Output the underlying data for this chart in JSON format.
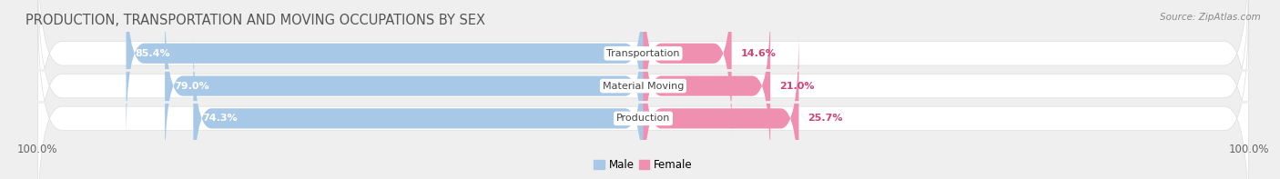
{
  "title": "PRODUCTION, TRANSPORTATION AND MOVING OCCUPATIONS BY SEX",
  "source": "Source: ZipAtlas.com",
  "categories": [
    "Transportation",
    "Material Moving",
    "Production"
  ],
  "male_values": [
    85.4,
    79.0,
    74.3
  ],
  "female_values": [
    14.6,
    21.0,
    25.7
  ],
  "male_color": "#a8c8e8",
  "female_color": "#f090b0",
  "bg_color": "#efefef",
  "bar_row_bg": "#e2e2e2",
  "bar_row_bg_light": "#f5f5f5",
  "axis_label": "100.0%",
  "title_fontsize": 10.5,
  "bar_height": 0.62,
  "figsize": [
    14.06,
    1.97
  ],
  "male_label_color": "white",
  "female_label_color": "#cc4477",
  "cat_label_color": "#444444",
  "axis_tick_color": "#666666",
  "source_color": "#888888"
}
